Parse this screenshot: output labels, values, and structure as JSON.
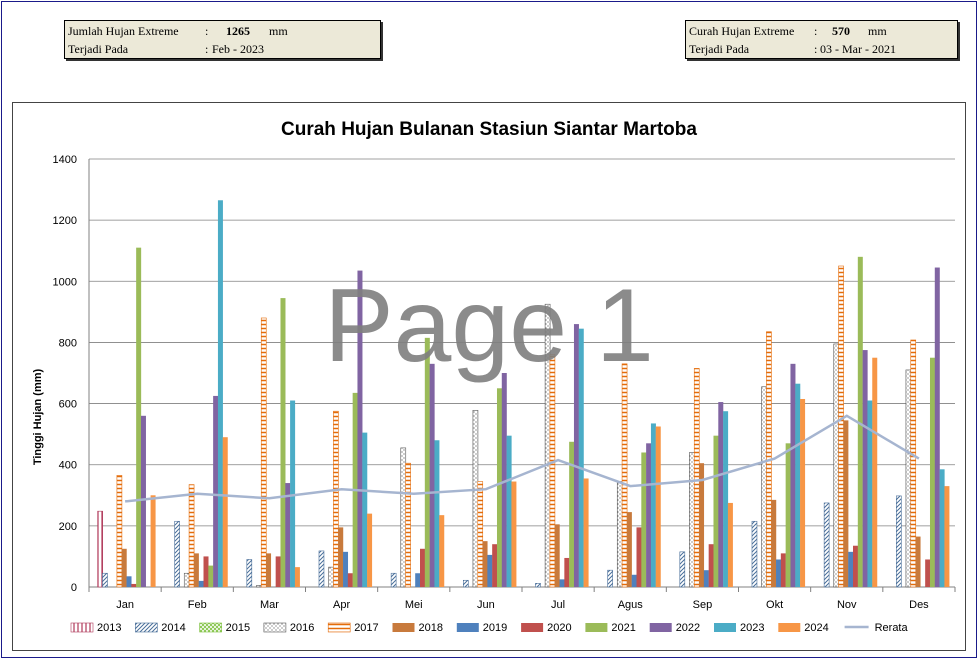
{
  "left_box": {
    "label1": "Jumlah Hujan Extreme",
    "sep1": ":",
    "value1": "1265",
    "unit1": "mm",
    "label2": "Terjadi Pada",
    "sep2": ":",
    "value2": "Feb - 2023"
  },
  "right_box": {
    "label1": "Curah Hujan Extreme",
    "sep1": ":",
    "value1": "570",
    "unit1": "mm",
    "label2": "Terjadi Pada",
    "sep2": ":",
    "value2": "03 - Mar - 2021"
  },
  "watermark": "Page 1",
  "chart_data": {
    "type": "bar",
    "title": "Curah Hujan Bulanan Stasiun Siantar Martoba",
    "xlabel": "",
    "ylabel": "Tinggi Hujan  (mm)",
    "ylim": [
      0,
      1400
    ],
    "yticks": [
      "0",
      "200",
      "400",
      "600",
      "800",
      "1000",
      "1200",
      "1400"
    ],
    "grid": true,
    "legend_position": "bottom",
    "categories": [
      "Jan",
      "Feb",
      "Mar",
      "Apr",
      "Mei",
      "Jun",
      "Jul",
      "Agus",
      "Sep",
      "Okt",
      "Nov",
      "Des"
    ],
    "series": [
      {
        "name": "2013",
        "color": "#b03a5b",
        "pattern": "vlines",
        "values": [
          248,
          0,
          0,
          0,
          0,
          0,
          0,
          0,
          0,
          0,
          0,
          0
        ]
      },
      {
        "name": "2014",
        "color": "#4a6f9a",
        "pattern": "diag",
        "values": [
          45,
          215,
          90,
          118,
          45,
          22,
          12,
          55,
          115,
          215,
          275,
          298
        ]
      },
      {
        "name": "2015",
        "color": "#7bbf3a",
        "pattern": "grid",
        "values": [
          0,
          0,
          0,
          0,
          0,
          0,
          0,
          0,
          0,
          0,
          0,
          0
        ]
      },
      {
        "name": "2016",
        "color": "#555555",
        "pattern": "dots",
        "values": [
          0,
          45,
          5,
          65,
          455,
          578,
          925,
          345,
          440,
          655,
          795,
          710
        ]
      },
      {
        "name": "2017",
        "color": "#e46c0a",
        "pattern": "hlines",
        "values": [
          365,
          335,
          880,
          575,
          405,
          345,
          760,
          730,
          715,
          835,
          1050,
          808
        ]
      },
      {
        "name": "2018",
        "color": "#c87a3c",
        "pattern": "solid",
        "values": [
          125,
          110,
          110,
          195,
          0,
          150,
          205,
          245,
          405,
          285,
          545,
          165
        ]
      },
      {
        "name": "2019",
        "color": "#4f81bd",
        "pattern": "solid",
        "values": [
          35,
          20,
          0,
          115,
          45,
          105,
          25,
          40,
          55,
          90,
          115,
          0
        ]
      },
      {
        "name": "2020",
        "color": "#c0504d",
        "pattern": "solid",
        "values": [
          10,
          100,
          100,
          45,
          125,
          140,
          95,
          195,
          140,
          110,
          135,
          90
        ]
      },
      {
        "name": "2021",
        "color": "#9bbb59",
        "pattern": "solid",
        "values": [
          1110,
          70,
          945,
          635,
          815,
          650,
          475,
          440,
          495,
          470,
          1080,
          750
        ]
      },
      {
        "name": "2022",
        "color": "#8064a2",
        "pattern": "solid",
        "values": [
          560,
          625,
          340,
          1035,
          730,
          700,
          860,
          470,
          605,
          730,
          775,
          1045
        ]
      },
      {
        "name": "2023",
        "color": "#4bacc6",
        "pattern": "solid",
        "values": [
          0,
          1265,
          610,
          505,
          480,
          495,
          845,
          535,
          575,
          665,
          610,
          385
        ]
      },
      {
        "name": "2024",
        "color": "#f79646",
        "pattern": "solid",
        "values": [
          300,
          490,
          65,
          240,
          235,
          345,
          355,
          525,
          275,
          615,
          750,
          330
        ]
      }
    ],
    "line_series": {
      "name": "Rerata",
      "color": "#a6b5d0",
      "values": [
        280,
        305,
        290,
        320,
        305,
        320,
        415,
        330,
        350,
        420,
        560,
        420
      ]
    }
  }
}
